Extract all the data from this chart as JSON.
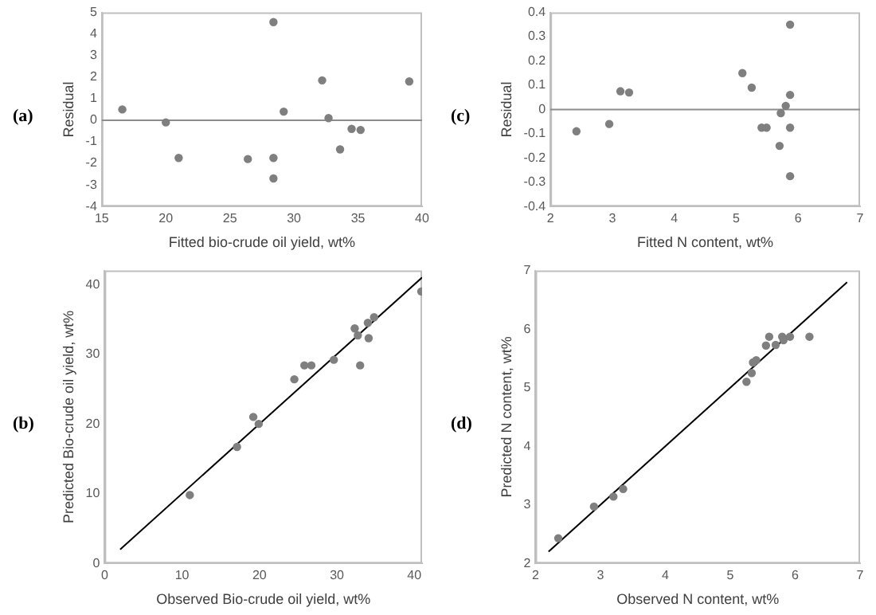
{
  "chart_data": [
    {
      "type": "scatter",
      "xlabel": "Fitted bio-crude oil yield, wt%",
      "ylabel": "Residual",
      "annotations": [
        "(a)"
      ],
      "xlim": [
        15,
        40
      ],
      "xticks": [
        15,
        20,
        25,
        30,
        35,
        40
      ],
      "ylim": [
        -4,
        5
      ],
      "yticks": [
        -4,
        -3,
        -2,
        -1,
        0,
        1,
        2,
        3,
        4,
        5
      ],
      "grid": false,
      "legend": false,
      "marker": "circle",
      "ref_lines": [
        {
          "axis": "y",
          "value": 0,
          "color": "#8c8c8c"
        }
      ],
      "series": [
        {
          "color": "#7f7f7f",
          "x": [
            16.6,
            20,
            21,
            26.4,
            28.4,
            28.4,
            28.4,
            29.2,
            32.2,
            32.7,
            33.6,
            34.5,
            35.2,
            39
          ],
          "values": [
            0.5,
            -0.1,
            -1.75,
            -1.8,
            -1.75,
            -2.7,
            4.55,
            0.4,
            1.85,
            0.1,
            -1.35,
            -0.4,
            -0.45,
            1.8
          ]
        }
      ]
    },
    {
      "type": "scatter",
      "xlabel": "Fitted N content, wt%",
      "ylabel": "Residual",
      "annotations": [
        "(c)"
      ],
      "xlim": [
        2,
        7
      ],
      "xticks": [
        2,
        3,
        4,
        5,
        6,
        7
      ],
      "ylim": [
        -0.4,
        0.4
      ],
      "yticks": [
        -0.4,
        -0.3,
        -0.2,
        -0.1,
        0,
        0.1,
        0.2,
        0.3,
        0.4
      ],
      "grid": false,
      "legend": false,
      "marker": "circle",
      "ref_lines": [
        {
          "axis": "y",
          "value": 0,
          "color": "#8c8c8c"
        }
      ],
      "series": [
        {
          "color": "#7f7f7f",
          "x": [
            2.42,
            2.95,
            3.13,
            3.27,
            5.1,
            5.25,
            5.41,
            5.49,
            5.72,
            5.7,
            5.8,
            5.87,
            5.87,
            5.87,
            5.87
          ],
          "values": [
            -0.09,
            -0.06,
            0.075,
            0.07,
            0.15,
            0.09,
            -0.075,
            -0.075,
            -0.015,
            -0.15,
            0.015,
            0.06,
            0.35,
            -0.075,
            -0.275
          ]
        }
      ]
    },
    {
      "type": "scatter",
      "xlabel": "Observed Bio-crude oil yield, wt%",
      "ylabel": "Predicted Bio-crude oil yield, wt%",
      "annotations": [
        "(b)"
      ],
      "xlim": [
        0,
        41
      ],
      "xticks": [
        0,
        10,
        20,
        30,
        40
      ],
      "ylim": [
        0,
        42
      ],
      "yticks": [
        0,
        10,
        20,
        30,
        40
      ],
      "grid": false,
      "legend": false,
      "marker": "circle",
      "series": [
        {
          "color": "#7f7f7f",
          "x": [
            11,
            17.1,
            19.2,
            19.9,
            24.5,
            25.8,
            26.7,
            29.6,
            32.3,
            32.7,
            33,
            34,
            34.1,
            34.8,
            40.9
          ],
          "values": [
            9.8,
            16.7,
            21,
            20,
            26.4,
            28.4,
            28.4,
            29.2,
            33.7,
            32.7,
            28.4,
            34.5,
            32.3,
            35.3,
            39
          ]
        },
        {
          "type": "line",
          "color": "#000000",
          "marker": "none",
          "x": [
            2,
            41
          ],
          "values": [
            2,
            41
          ]
        }
      ]
    },
    {
      "type": "scatter",
      "xlabel": "Observed N content, wt%",
      "ylabel": "Predicted N content, wt%",
      "annotations": [
        "(d)"
      ],
      "xlim": [
        2,
        7
      ],
      "xticks": [
        2,
        3,
        4,
        5,
        6,
        7
      ],
      "ylim": [
        2,
        7
      ],
      "yticks": [
        2,
        3,
        4,
        5,
        6,
        7
      ],
      "grid": false,
      "legend": false,
      "marker": "circle",
      "series": [
        {
          "color": "#7f7f7f",
          "x": [
            2.35,
            2.9,
            3.2,
            3.35,
            5.25,
            5.33,
            5.35,
            5.4,
            5.55,
            5.6,
            5.7,
            5.8,
            5.82,
            5.92,
            6.22
          ],
          "values": [
            2.43,
            2.97,
            3.14,
            3.27,
            5.1,
            5.25,
            5.43,
            5.47,
            5.72,
            5.87,
            5.73,
            5.87,
            5.81,
            5.87,
            5.87
          ]
        },
        {
          "type": "line",
          "color": "#000000",
          "marker": "none",
          "x": [
            2.2,
            6.8
          ],
          "values": [
            2.2,
            6.8
          ]
        }
      ]
    }
  ]
}
